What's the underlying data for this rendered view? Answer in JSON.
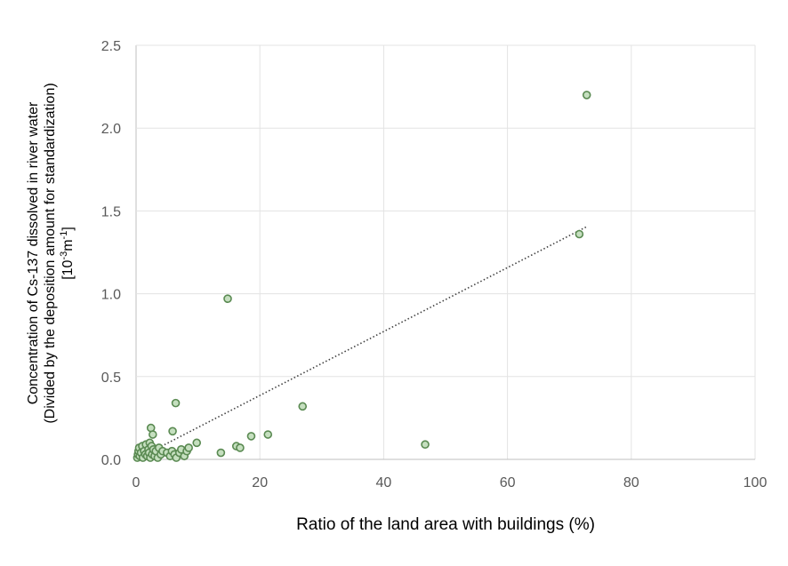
{
  "chart_data": {
    "type": "scatter",
    "title": "",
    "xlabel": "Ratio of the land area with buildings  (%)",
    "ylabel_lines": [
      "Concentration of Cs-137 dissolved in river water",
      "(Divided by the deposition amount for standardization)",
      "[10",
      "-3",
      "m",
      "-1",
      "]"
    ],
    "xlim": [
      0,
      100
    ],
    "ylim": [
      0,
      2.5
    ],
    "xticks": [
      "0",
      "20",
      "40",
      "60",
      "80",
      "100"
    ],
    "yticks": [
      "0.0",
      "0.5",
      "1.0",
      "1.5",
      "2.0",
      "2.5"
    ],
    "grid": true,
    "legend": "none",
    "marker_fill": "#c5dfbf",
    "marker_edge": "#5a8a52",
    "points": [
      [
        0.2,
        0.01
      ],
      [
        0.3,
        0.03
      ],
      [
        0.4,
        0.05
      ],
      [
        0.5,
        0.07
      ],
      [
        0.6,
        0.02
      ],
      [
        0.8,
        0.04
      ],
      [
        1.0,
        0.08
      ],
      [
        1.1,
        0.01
      ],
      [
        1.3,
        0.05
      ],
      [
        1.5,
        0.03
      ],
      [
        1.6,
        0.09
      ],
      [
        1.8,
        0.02
      ],
      [
        2.0,
        0.06
      ],
      [
        2.1,
        0.04
      ],
      [
        2.2,
        0.1
      ],
      [
        2.3,
        0.01
      ],
      [
        2.5,
        0.08
      ],
      [
        2.6,
        0.03
      ],
      [
        2.8,
        0.06
      ],
      [
        3.0,
        0.02
      ],
      [
        3.2,
        0.05
      ],
      [
        3.5,
        0.01
      ],
      [
        3.7,
        0.07
      ],
      [
        4.0,
        0.03
      ],
      [
        4.3,
        0.05
      ],
      [
        5.0,
        0.04
      ],
      [
        5.5,
        0.02
      ],
      [
        5.8,
        0.05
      ],
      [
        6.2,
        0.03
      ],
      [
        6.5,
        0.01
      ],
      [
        7.0,
        0.04
      ],
      [
        7.3,
        0.06
      ],
      [
        7.8,
        0.02
      ],
      [
        8.2,
        0.05
      ],
      [
        8.5,
        0.07
      ],
      [
        2.4,
        0.19
      ],
      [
        2.7,
        0.15
      ],
      [
        5.9,
        0.17
      ],
      [
        6.4,
        0.34
      ],
      [
        9.8,
        0.1
      ],
      [
        13.7,
        0.04
      ],
      [
        14.8,
        0.97
      ],
      [
        16.2,
        0.08
      ],
      [
        16.8,
        0.07
      ],
      [
        18.6,
        0.14
      ],
      [
        21.3,
        0.15
      ],
      [
        26.9,
        0.32
      ],
      [
        46.7,
        0.09
      ],
      [
        71.6,
        1.36
      ],
      [
        72.8,
        2.2
      ]
    ],
    "trendline": {
      "type": "linear",
      "style": "dotted",
      "color": "#404040",
      "x_range": [
        0.5,
        72.8
      ],
      "slope": 0.0193,
      "intercept": 0.0
    }
  }
}
